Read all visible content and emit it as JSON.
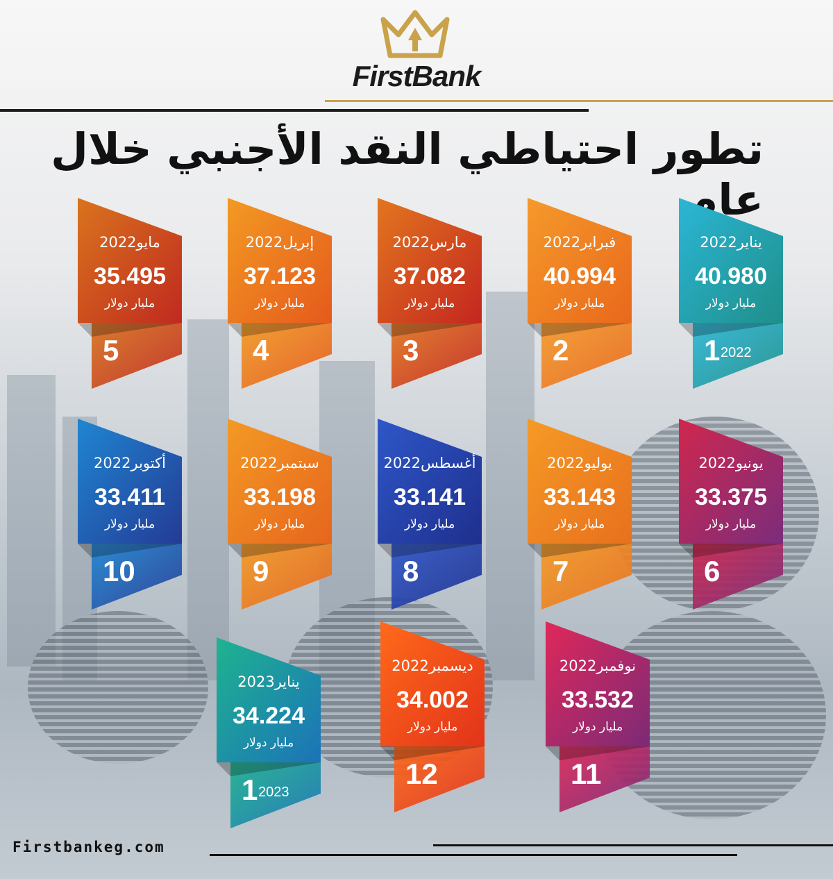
{
  "brand": {
    "name": "FirstBank",
    "website": "Firstbankeg.com",
    "gold": "#c9a24a"
  },
  "title": "تطور احتياطي النقد الأجنبي خلال عام",
  "unit_label": "مليار دولار",
  "cards": [
    {
      "num": "1",
      "month": "يناير2022",
      "value": "40.980",
      "year": "2022",
      "c1": "#2bb6d6",
      "c2": "#1f8f8a"
    },
    {
      "num": "2",
      "month": "فبراير2022",
      "value": "40.994",
      "year": "",
      "c1": "#f59a2a",
      "c2": "#e9681c"
    },
    {
      "num": "3",
      "month": "مارس2022",
      "value": "37.082",
      "year": "",
      "c1": "#e2761f",
      "c2": "#c4261f"
    },
    {
      "num": "4",
      "month": "إبريل2022",
      "value": "37.123",
      "year": "",
      "c1": "#f39a23",
      "c2": "#e55a1c"
    },
    {
      "num": "5",
      "month": "مايو2022",
      "value": "35.495",
      "year": "",
      "c1": "#d9741e",
      "c2": "#c02a1f"
    },
    {
      "num": "6",
      "month": "يونيو2022",
      "value": "33.375",
      "year": "",
      "c1": "#d0274e",
      "c2": "#7b2d7b"
    },
    {
      "num": "7",
      "month": "يوليو2022",
      "value": "33.143",
      "year": "",
      "c1": "#f59a26",
      "c2": "#e8701d"
    },
    {
      "num": "8",
      "month": "أغسطس2022",
      "value": "33.141",
      "year": "",
      "c1": "#2e57c8",
      "c2": "#1f2f8e"
    },
    {
      "num": "9",
      "month": "سبتمبر2022",
      "value": "33.198",
      "year": "",
      "c1": "#f39a25",
      "c2": "#e6651d"
    },
    {
      "num": "10",
      "month": "أكتوبر2022",
      "value": "33.411",
      "year": "",
      "c1": "#1f86d2",
      "c2": "#243b95"
    },
    {
      "num": "11",
      "month": "نوفمبر2022",
      "value": "33.532",
      "year": "",
      "c1": "#e0285a",
      "c2": "#7c2a77"
    },
    {
      "num": "12",
      "month": "ديسمبر2022",
      "value": "34.002",
      "year": "",
      "c1": "#ff6a1a",
      "c2": "#e2331a"
    },
    {
      "num": "1",
      "month": "يناير2023",
      "value": "34.224",
      "year": "2023",
      "c1": "#1fb38f",
      "c2": "#1b73b8"
    }
  ]
}
